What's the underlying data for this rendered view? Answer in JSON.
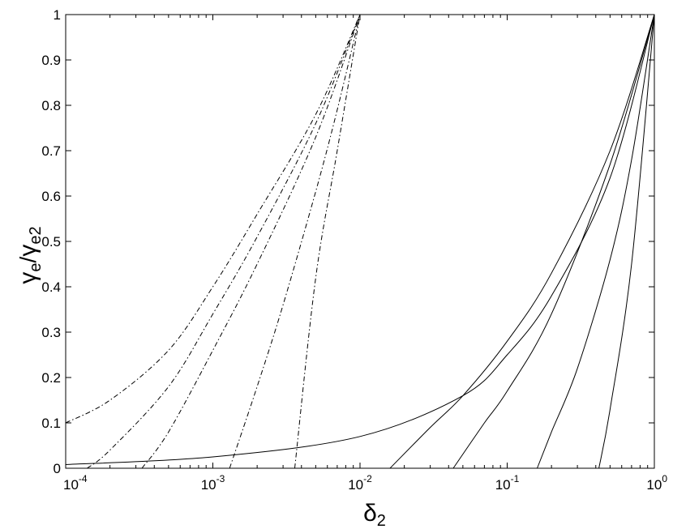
{
  "chart_data": {
    "type": "line",
    "x_scale": "log",
    "xlim": [
      0.0001,
      1
    ],
    "ylim": [
      0,
      1
    ],
    "grid": false,
    "x_ticks": [
      {
        "value": 0.0001,
        "base": "10",
        "exp": "-4"
      },
      {
        "value": 0.001,
        "base": "10",
        "exp": "-3"
      },
      {
        "value": 0.01,
        "base": "10",
        "exp": "-2"
      },
      {
        "value": 0.1,
        "base": "10",
        "exp": "-1"
      },
      {
        "value": 1,
        "base": "10",
        "exp": "0"
      }
    ],
    "y_ticks": [
      "0",
      "0.1",
      "0.2",
      "0.3",
      "0.4",
      "0.5",
      "0.6",
      "0.7",
      "0.8",
      "0.9",
      "1"
    ],
    "xlabel": {
      "main": "δ",
      "sub": "2"
    },
    "ylabel": {
      "g1": "γ",
      "s1": "e",
      "slash": "/",
      "g2": "γ",
      "s2": "e2"
    },
    "series": [
      {
        "style": "dashdot",
        "x": [
          0.0001,
          0.0002,
          0.0005,
          0.001,
          0.002,
          0.005,
          0.01
        ],
        "y": [
          0.1,
          0.15,
          0.26,
          0.4,
          0.56,
          0.78,
          1.0
        ]
      },
      {
        "style": "dashdot",
        "x": [
          0.00014,
          0.0002,
          0.0005,
          0.001,
          0.002,
          0.005,
          0.01
        ],
        "y": [
          0.0,
          0.04,
          0.18,
          0.34,
          0.51,
          0.76,
          1.0
        ]
      },
      {
        "style": "dashdot",
        "x": [
          0.00033,
          0.0005,
          0.001,
          0.002,
          0.005,
          0.01
        ],
        "y": [
          0.0,
          0.08,
          0.26,
          0.45,
          0.73,
          1.0
        ]
      },
      {
        "style": "dashdot",
        "x": [
          0.0013,
          0.002,
          0.003,
          0.005,
          0.007,
          0.01
        ],
        "y": [
          0.0,
          0.18,
          0.36,
          0.61,
          0.79,
          1.0
        ]
      },
      {
        "style": "dashdot",
        "x": [
          0.0036,
          0.005,
          0.007,
          0.01
        ],
        "y": [
          0.0,
          0.42,
          0.7,
          1.0
        ]
      },
      {
        "style": "solid",
        "x": [
          0.0001,
          0.001,
          0.01,
          0.05,
          0.1,
          0.2,
          0.5,
          1
        ],
        "y": [
          0.008,
          0.025,
          0.07,
          0.16,
          0.25,
          0.38,
          0.64,
          1.0
        ]
      },
      {
        "style": "solid",
        "x": [
          0.016,
          0.03,
          0.05,
          0.1,
          0.2,
          0.5,
          1
        ],
        "y": [
          0.0,
          0.09,
          0.16,
          0.28,
          0.43,
          0.7,
          1.0
        ]
      },
      {
        "style": "solid",
        "x": [
          0.043,
          0.07,
          0.1,
          0.2,
          0.5,
          1
        ],
        "y": [
          0.0,
          0.1,
          0.17,
          0.34,
          0.67,
          1.0
        ]
      },
      {
        "style": "solid",
        "x": [
          0.16,
          0.2,
          0.3,
          0.5,
          0.7,
          1
        ],
        "y": [
          0.0,
          0.08,
          0.22,
          0.46,
          0.68,
          1.0
        ]
      },
      {
        "style": "solid",
        "x": [
          0.42,
          0.5,
          0.7,
          1
        ],
        "y": [
          0.0,
          0.13,
          0.45,
          1.0
        ]
      }
    ]
  }
}
